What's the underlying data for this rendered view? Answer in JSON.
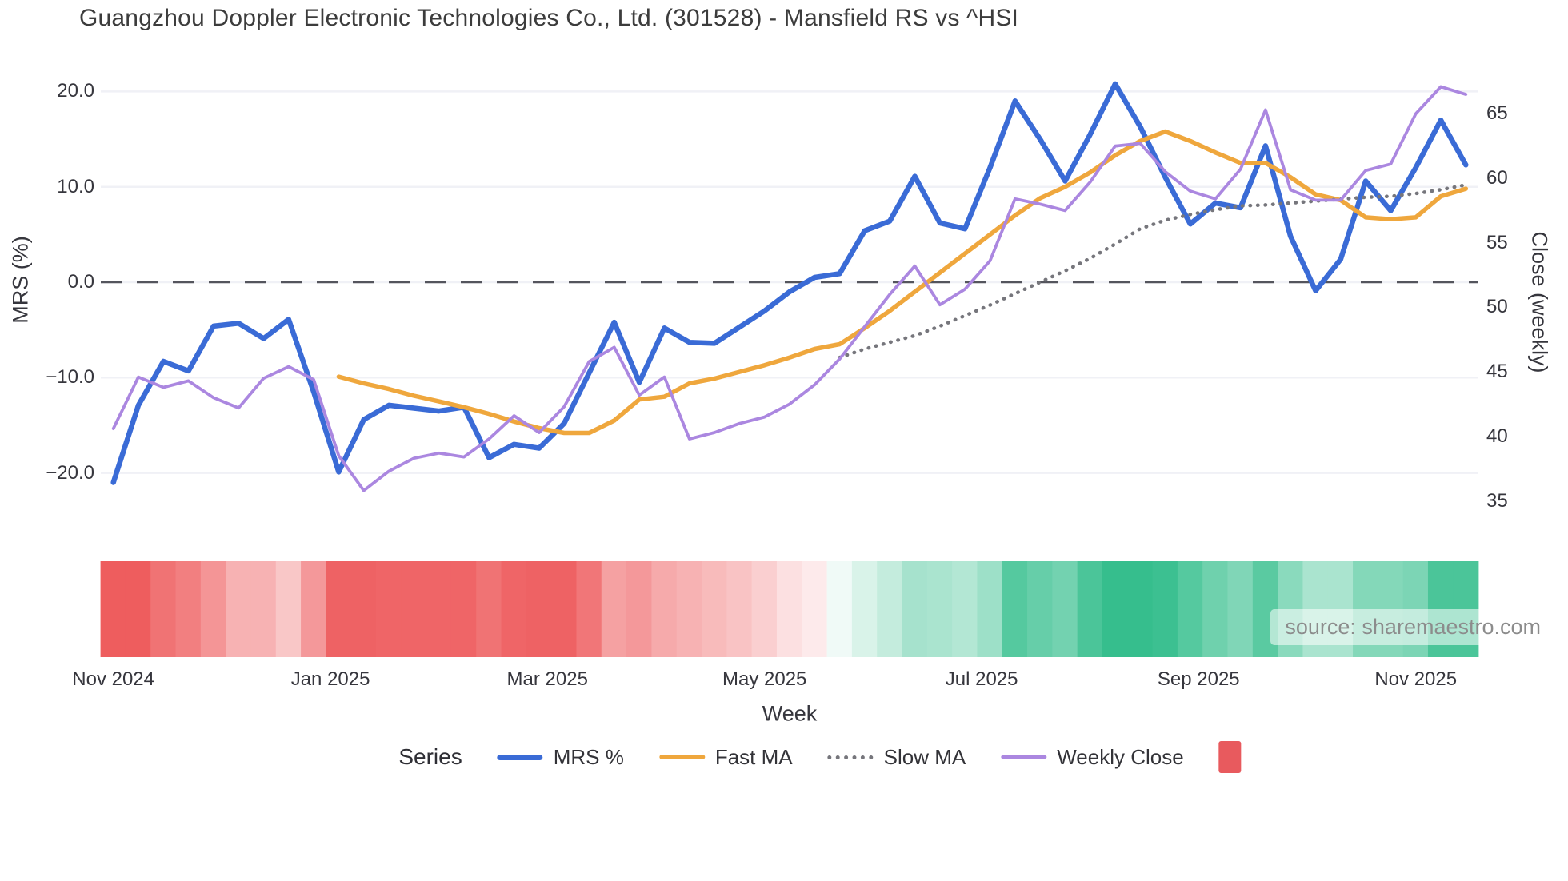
{
  "header": {
    "title": "Guangzhou Doppler Electronic Technologies Co., Ltd. (301528) - Mansfield RS vs ^HSI"
  },
  "watermark": {
    "text": "source: sharemaestro.com"
  },
  "legend": {
    "title": "Series",
    "heatmap_swatch_color": "#e85a5e"
  },
  "colors": {
    "background": "#ffffff",
    "grid": "#f0f1f6",
    "zero_line": "#54555d",
    "tick_text": "#36363d",
    "title_text": "#3c3c3c",
    "watermark_text": "#8c8c8c",
    "heat_negative": "#ed5456",
    "heat_positive": "#2bbb87"
  },
  "chart_data": {
    "type": "line",
    "title": "Guangzhou Doppler Electronic Technologies Co., Ltd. (301528) - Mansfield RS vs ^HSI",
    "x_axis": {
      "label": "Week",
      "weeks_total": 55,
      "tick_labels": [
        "Nov 2024",
        "Jan 2025",
        "Mar 2025",
        "May 2025",
        "Jul 2025",
        "Sep 2025",
        "Nov 2025"
      ],
      "tick_week_positions": [
        0,
        8.67,
        17.33,
        26,
        34.67,
        43.33,
        52
      ]
    },
    "y_left": {
      "label": "MRS (%)",
      "ticks": [
        {
          "value": 20,
          "label": "20.0"
        },
        {
          "value": 10,
          "label": "10.0"
        },
        {
          "value": 0,
          "label": "0.0"
        },
        {
          "value": -10,
          "label": "−10.0"
        },
        {
          "value": -20,
          "label": "−20.0"
        }
      ],
      "range": [
        -23.5,
        23.5
      ]
    },
    "y_right": {
      "label": "Close (weekly)",
      "ticks": [
        {
          "value": 65,
          "label": "65"
        },
        {
          "value": 60,
          "label": "60"
        },
        {
          "value": 55,
          "label": "55"
        },
        {
          "value": 50,
          "label": "50"
        },
        {
          "value": 45,
          "label": "45"
        },
        {
          "value": 40,
          "label": "40"
        },
        {
          "value": 35,
          "label": "35"
        }
      ],
      "range": [
        33,
        69
      ]
    },
    "zero_reference_line": {
      "axis": "left",
      "value": 0,
      "style": "dashed"
    },
    "series": [
      {
        "name": "MRS %",
        "axis": "left",
        "color": "#3a6bd6",
        "line_style": "solid",
        "line_width": 6.5,
        "values": [
          -21.0,
          -12.9,
          -8.3,
          -9.3,
          -4.6,
          -4.3,
          -5.9,
          -3.9,
          -11.5,
          -19.9,
          -14.4,
          -12.9,
          -13.2,
          -13.5,
          -13.1,
          -18.4,
          -17.0,
          -17.4,
          -14.8,
          -9.5,
          -4.2,
          -10.5,
          -4.8,
          -6.3,
          -6.4,
          -4.7,
          -3.0,
          -1.0,
          0.5,
          0.9,
          5.4,
          6.4,
          11.1,
          6.2,
          5.6,
          12.0,
          19.0,
          15.0,
          10.6,
          15.5,
          20.8,
          16.3,
          11.0,
          6.1,
          8.3,
          7.8,
          14.3,
          4.8,
          -0.9,
          2.4,
          10.6,
          7.5,
          12.0,
          17.0,
          12.3
        ]
      },
      {
        "name": "Fast MA",
        "axis": "left",
        "color": "#efa73d",
        "line_style": "solid",
        "line_width": 5.5,
        "values": [
          null,
          null,
          null,
          null,
          null,
          null,
          null,
          null,
          null,
          -9.9,
          -10.6,
          -11.2,
          -11.9,
          -12.5,
          -13.1,
          -13.8,
          -14.6,
          -15.3,
          -15.8,
          -15.8,
          -14.5,
          -12.3,
          -12.0,
          -10.6,
          -10.1,
          -9.4,
          -8.7,
          -7.9,
          -7.0,
          -6.5,
          -4.8,
          -3.0,
          -1.0,
          1.0,
          3.0,
          5.0,
          7.0,
          8.8,
          10.0,
          11.5,
          13.3,
          14.8,
          15.8,
          14.8,
          13.6,
          12.5,
          12.5,
          11.0,
          9.2,
          8.6,
          6.8,
          6.6,
          6.8,
          9.0,
          9.8
        ]
      },
      {
        "name": "Slow MA",
        "axis": "left",
        "color": "#76767c",
        "line_style": "dotted",
        "line_width": 4.5,
        "values": [
          null,
          null,
          null,
          null,
          null,
          null,
          null,
          null,
          null,
          null,
          null,
          null,
          null,
          null,
          null,
          null,
          null,
          null,
          null,
          null,
          null,
          null,
          null,
          null,
          null,
          null,
          null,
          null,
          null,
          -7.9,
          -7.0,
          -6.3,
          -5.6,
          -4.6,
          -3.5,
          -2.4,
          -1.2,
          0.0,
          1.2,
          2.5,
          4.0,
          5.6,
          6.5,
          7.1,
          7.6,
          8.0,
          8.1,
          8.3,
          8.5,
          8.7,
          8.9,
          9.0,
          9.3,
          9.7,
          10.2
        ]
      },
      {
        "name": "Weekly Close",
        "axis": "right",
        "color": "#ab87e0",
        "line_style": "solid",
        "line_width": 3.8,
        "values": [
          40.6,
          44.6,
          43.8,
          44.3,
          43.0,
          42.2,
          44.5,
          45.4,
          44.4,
          38.5,
          35.8,
          37.3,
          38.3,
          38.7,
          38.4,
          39.8,
          41.6,
          40.3,
          42.3,
          45.8,
          46.9,
          43.2,
          44.6,
          39.8,
          40.3,
          41.0,
          41.5,
          42.5,
          44.0,
          46.0,
          48.5,
          51.0,
          53.2,
          50.2,
          51.4,
          53.6,
          58.4,
          58.0,
          57.5,
          59.7,
          62.5,
          62.7,
          60.5,
          59.0,
          58.4,
          60.7,
          65.3,
          59.1,
          58.3,
          58.3,
          60.6,
          61.1,
          65.0,
          67.1,
          66.5
        ]
      }
    ],
    "heat_strip": {
      "negative_color": "#ed5456",
      "positive_color": "#2bbb87",
      "values": [
        -0.95,
        -0.95,
        -0.82,
        -0.75,
        -0.62,
        -0.45,
        -0.45,
        -0.33,
        -0.6,
        -0.92,
        -0.92,
        -0.9,
        -0.9,
        -0.9,
        -0.9,
        -0.82,
        -0.9,
        -0.92,
        -0.92,
        -0.8,
        -0.55,
        -0.6,
        -0.5,
        -0.45,
        -0.4,
        -0.35,
        -0.28,
        -0.18,
        -0.12,
        0.07,
        0.18,
        0.28,
        0.42,
        0.4,
        0.36,
        0.46,
        0.8,
        0.72,
        0.66,
        0.85,
        0.95,
        0.95,
        0.92,
        0.8,
        0.68,
        0.6,
        0.78,
        0.55,
        0.4,
        0.4,
        0.58,
        0.58,
        0.62,
        0.85,
        0.85
      ]
    }
  }
}
